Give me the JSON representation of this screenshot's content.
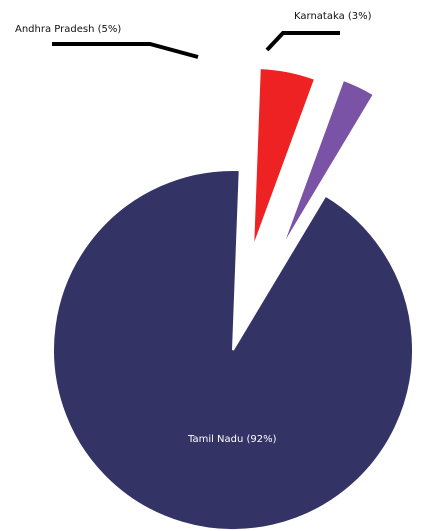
{
  "chart_data": {
    "type": "pie",
    "title": "",
    "slices": [
      {
        "label": "Tamil Nadu (92%)",
        "value": 92,
        "color": "#333366"
      },
      {
        "label": "Andhra Pradesh (5%)",
        "value": 5,
        "color": "#ee2222"
      },
      {
        "label": "Karnataka (3%)",
        "value": 3,
        "color": "#7a52a6"
      }
    ],
    "legend": "none"
  }
}
